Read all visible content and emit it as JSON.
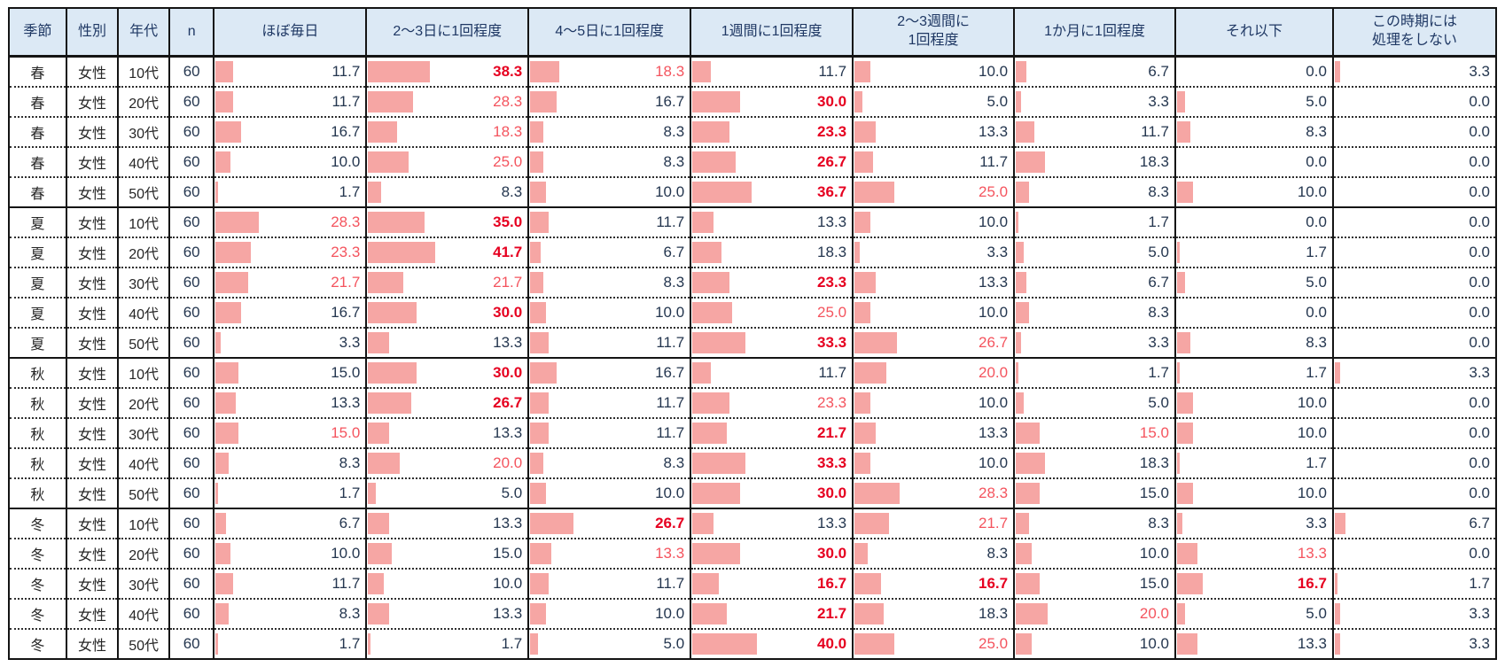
{
  "colors": {
    "header_bg": "#dce9f5",
    "header_text": "#1f3864",
    "normal_value_text": "#24364f",
    "row_max_text": "#e60020",
    "row_second_text": "#f4545e",
    "bar_fill": "#f6a6a4",
    "border": "#141414"
  },
  "table": {
    "columns": [
      {
        "label": "季節"
      },
      {
        "label": "性別"
      },
      {
        "label": "年代"
      },
      {
        "label": "n"
      },
      {
        "label": "ほぼ毎日"
      },
      {
        "label": "2〜3日に1回程度"
      },
      {
        "label": "4〜5日に1回程度"
      },
      {
        "label": "1週間に1回程度"
      },
      {
        "label": "2〜3週間に\n1回程度"
      },
      {
        "label": "1か月に1回程度"
      },
      {
        "label": "それ以下"
      },
      {
        "label": "この時期には\n処理をしない"
      }
    ],
    "rows": [
      {
        "season": "春",
        "gender": "女性",
        "age": "10代",
        "n": "60",
        "cells": [
          {
            "v": 11.7
          },
          {
            "v": 38.3,
            "s": "max"
          },
          {
            "v": 18.3,
            "s": "second"
          },
          {
            "v": 11.7
          },
          {
            "v": 10.0
          },
          {
            "v": 6.7
          },
          {
            "v": 0.0
          },
          {
            "v": 3.3
          }
        ]
      },
      {
        "season": "春",
        "gender": "女性",
        "age": "20代",
        "n": "60",
        "cells": [
          {
            "v": 11.7
          },
          {
            "v": 28.3,
            "s": "second"
          },
          {
            "v": 16.7
          },
          {
            "v": 30.0,
            "s": "max"
          },
          {
            "v": 5.0
          },
          {
            "v": 3.3
          },
          {
            "v": 5.0
          },
          {
            "v": 0.0
          }
        ]
      },
      {
        "season": "春",
        "gender": "女性",
        "age": "30代",
        "n": "60",
        "cells": [
          {
            "v": 16.7
          },
          {
            "v": 18.3,
            "s": "second"
          },
          {
            "v": 8.3
          },
          {
            "v": 23.3,
            "s": "max"
          },
          {
            "v": 13.3
          },
          {
            "v": 11.7
          },
          {
            "v": 8.3
          },
          {
            "v": 0.0
          }
        ]
      },
      {
        "season": "春",
        "gender": "女性",
        "age": "40代",
        "n": "60",
        "cells": [
          {
            "v": 10.0
          },
          {
            "v": 25.0,
            "s": "second"
          },
          {
            "v": 8.3
          },
          {
            "v": 26.7,
            "s": "max"
          },
          {
            "v": 11.7
          },
          {
            "v": 18.3
          },
          {
            "v": 0.0
          },
          {
            "v": 0.0
          }
        ]
      },
      {
        "season": "春",
        "gender": "女性",
        "age": "50代",
        "n": "60",
        "cells": [
          {
            "v": 1.7
          },
          {
            "v": 8.3
          },
          {
            "v": 10.0
          },
          {
            "v": 36.7,
            "s": "max"
          },
          {
            "v": 25.0,
            "s": "second"
          },
          {
            "v": 8.3
          },
          {
            "v": 10.0
          },
          {
            "v": 0.0
          }
        ]
      },
      {
        "season": "夏",
        "gender": "女性",
        "age": "10代",
        "n": "60",
        "cells": [
          {
            "v": 28.3,
            "s": "second"
          },
          {
            "v": 35.0,
            "s": "max"
          },
          {
            "v": 11.7
          },
          {
            "v": 13.3
          },
          {
            "v": 10.0
          },
          {
            "v": 1.7
          },
          {
            "v": 0.0
          },
          {
            "v": 0.0
          }
        ]
      },
      {
        "season": "夏",
        "gender": "女性",
        "age": "20代",
        "n": "60",
        "cells": [
          {
            "v": 23.3,
            "s": "second"
          },
          {
            "v": 41.7,
            "s": "max"
          },
          {
            "v": 6.7
          },
          {
            "v": 18.3
          },
          {
            "v": 3.3
          },
          {
            "v": 5.0
          },
          {
            "v": 1.7
          },
          {
            "v": 0.0
          }
        ]
      },
      {
        "season": "夏",
        "gender": "女性",
        "age": "30代",
        "n": "60",
        "cells": [
          {
            "v": 21.7,
            "s": "second"
          },
          {
            "v": 21.7,
            "s": "second"
          },
          {
            "v": 8.3
          },
          {
            "v": 23.3,
            "s": "max"
          },
          {
            "v": 13.3
          },
          {
            "v": 6.7
          },
          {
            "v": 5.0
          },
          {
            "v": 0.0
          }
        ]
      },
      {
        "season": "夏",
        "gender": "女性",
        "age": "40代",
        "n": "60",
        "cells": [
          {
            "v": 16.7
          },
          {
            "v": 30.0,
            "s": "max"
          },
          {
            "v": 10.0
          },
          {
            "v": 25.0,
            "s": "second"
          },
          {
            "v": 10.0
          },
          {
            "v": 8.3
          },
          {
            "v": 0.0
          },
          {
            "v": 0.0
          }
        ]
      },
      {
        "season": "夏",
        "gender": "女性",
        "age": "50代",
        "n": "60",
        "cells": [
          {
            "v": 3.3
          },
          {
            "v": 13.3
          },
          {
            "v": 11.7
          },
          {
            "v": 33.3,
            "s": "max"
          },
          {
            "v": 26.7,
            "s": "second"
          },
          {
            "v": 3.3
          },
          {
            "v": 8.3
          },
          {
            "v": 0.0
          }
        ]
      },
      {
        "season": "秋",
        "gender": "女性",
        "age": "10代",
        "n": "60",
        "cells": [
          {
            "v": 15.0
          },
          {
            "v": 30.0,
            "s": "max"
          },
          {
            "v": 16.7
          },
          {
            "v": 11.7
          },
          {
            "v": 20.0,
            "s": "second"
          },
          {
            "v": 1.7
          },
          {
            "v": 1.7
          },
          {
            "v": 3.3
          }
        ]
      },
      {
        "season": "秋",
        "gender": "女性",
        "age": "20代",
        "n": "60",
        "cells": [
          {
            "v": 13.3
          },
          {
            "v": 26.7,
            "s": "max"
          },
          {
            "v": 11.7
          },
          {
            "v": 23.3,
            "s": "second"
          },
          {
            "v": 10.0
          },
          {
            "v": 5.0
          },
          {
            "v": 10.0
          },
          {
            "v": 0.0
          }
        ]
      },
      {
        "season": "秋",
        "gender": "女性",
        "age": "30代",
        "n": "60",
        "cells": [
          {
            "v": 15.0,
            "s": "second"
          },
          {
            "v": 13.3
          },
          {
            "v": 11.7
          },
          {
            "v": 21.7,
            "s": "max"
          },
          {
            "v": 13.3
          },
          {
            "v": 15.0,
            "s": "second"
          },
          {
            "v": 10.0
          },
          {
            "v": 0.0
          }
        ]
      },
      {
        "season": "秋",
        "gender": "女性",
        "age": "40代",
        "n": "60",
        "cells": [
          {
            "v": 8.3
          },
          {
            "v": 20.0,
            "s": "second"
          },
          {
            "v": 8.3
          },
          {
            "v": 33.3,
            "s": "max"
          },
          {
            "v": 10.0
          },
          {
            "v": 18.3
          },
          {
            "v": 1.7
          },
          {
            "v": 0.0
          }
        ]
      },
      {
        "season": "秋",
        "gender": "女性",
        "age": "50代",
        "n": "60",
        "cells": [
          {
            "v": 1.7
          },
          {
            "v": 5.0
          },
          {
            "v": 10.0
          },
          {
            "v": 30.0,
            "s": "max"
          },
          {
            "v": 28.3,
            "s": "second"
          },
          {
            "v": 15.0
          },
          {
            "v": 10.0
          },
          {
            "v": 0.0
          }
        ]
      },
      {
        "season": "冬",
        "gender": "女性",
        "age": "10代",
        "n": "60",
        "cells": [
          {
            "v": 6.7
          },
          {
            "v": 13.3
          },
          {
            "v": 26.7,
            "s": "max"
          },
          {
            "v": 13.3
          },
          {
            "v": 21.7,
            "s": "second"
          },
          {
            "v": 8.3
          },
          {
            "v": 3.3
          },
          {
            "v": 6.7
          }
        ]
      },
      {
        "season": "冬",
        "gender": "女性",
        "age": "20代",
        "n": "60",
        "cells": [
          {
            "v": 10.0
          },
          {
            "v": 15.0
          },
          {
            "v": 13.3,
            "s": "second"
          },
          {
            "v": 30.0,
            "s": "max"
          },
          {
            "v": 8.3
          },
          {
            "v": 10.0
          },
          {
            "v": 13.3,
            "s": "second"
          },
          {
            "v": 0.0
          }
        ]
      },
      {
        "season": "冬",
        "gender": "女性",
        "age": "30代",
        "n": "60",
        "cells": [
          {
            "v": 11.7
          },
          {
            "v": 10.0
          },
          {
            "v": 11.7
          },
          {
            "v": 16.7,
            "s": "max"
          },
          {
            "v": 16.7,
            "s": "max"
          },
          {
            "v": 15.0
          },
          {
            "v": 16.7,
            "s": "max"
          },
          {
            "v": 1.7
          }
        ]
      },
      {
        "season": "冬",
        "gender": "女性",
        "age": "40代",
        "n": "60",
        "cells": [
          {
            "v": 8.3
          },
          {
            "v": 13.3
          },
          {
            "v": 10.0
          },
          {
            "v": 21.7,
            "s": "max"
          },
          {
            "v": 18.3
          },
          {
            "v": 20.0,
            "s": "second"
          },
          {
            "v": 5.0
          },
          {
            "v": 3.3
          }
        ]
      },
      {
        "season": "冬",
        "gender": "女性",
        "age": "50代",
        "n": "60",
        "cells": [
          {
            "v": 1.7
          },
          {
            "v": 1.7
          },
          {
            "v": 5.0
          },
          {
            "v": 40.0,
            "s": "max"
          },
          {
            "v": 25.0,
            "s": "second"
          },
          {
            "v": 10.0
          },
          {
            "v": 13.3
          },
          {
            "v": 3.3
          }
        ]
      }
    ]
  },
  "chart_data": {
    "type": "table",
    "title": "",
    "columns": [
      "季節",
      "性別",
      "年代",
      "n",
      "ほぼ毎日",
      "2〜3日に1回程度",
      "4〜5日に1回程度",
      "1週間に1回程度",
      "2〜3週間に1回程度",
      "1か月に1回程度",
      "それ以下",
      "この時期には処理をしない"
    ],
    "rows": [
      [
        "春",
        "女性",
        "10代",
        60,
        11.7,
        38.3,
        18.3,
        11.7,
        10.0,
        6.7,
        0.0,
        3.3
      ],
      [
        "春",
        "女性",
        "20代",
        60,
        11.7,
        28.3,
        16.7,
        30.0,
        5.0,
        3.3,
        5.0,
        0.0
      ],
      [
        "春",
        "女性",
        "30代",
        60,
        16.7,
        18.3,
        8.3,
        23.3,
        13.3,
        11.7,
        8.3,
        0.0
      ],
      [
        "春",
        "女性",
        "40代",
        60,
        10.0,
        25.0,
        8.3,
        26.7,
        11.7,
        18.3,
        0.0,
        0.0
      ],
      [
        "春",
        "女性",
        "50代",
        60,
        1.7,
        8.3,
        10.0,
        36.7,
        25.0,
        8.3,
        10.0,
        0.0
      ],
      [
        "夏",
        "女性",
        "10代",
        60,
        28.3,
        35.0,
        11.7,
        13.3,
        10.0,
        1.7,
        0.0,
        0.0
      ],
      [
        "夏",
        "女性",
        "20代",
        60,
        23.3,
        41.7,
        6.7,
        18.3,
        3.3,
        5.0,
        1.7,
        0.0
      ],
      [
        "夏",
        "女性",
        "30代",
        60,
        21.7,
        21.7,
        8.3,
        23.3,
        13.3,
        6.7,
        5.0,
        0.0
      ],
      [
        "夏",
        "女性",
        "40代",
        60,
        16.7,
        30.0,
        10.0,
        25.0,
        10.0,
        8.3,
        0.0,
        0.0
      ],
      [
        "夏",
        "女性",
        "50代",
        60,
        3.3,
        13.3,
        11.7,
        33.3,
        26.7,
        3.3,
        8.3,
        0.0
      ],
      [
        "秋",
        "女性",
        "10代",
        60,
        15.0,
        30.0,
        16.7,
        11.7,
        20.0,
        1.7,
        1.7,
        3.3
      ],
      [
        "秋",
        "女性",
        "20代",
        60,
        13.3,
        26.7,
        11.7,
        23.3,
        10.0,
        5.0,
        10.0,
        0.0
      ],
      [
        "秋",
        "女性",
        "30代",
        60,
        15.0,
        13.3,
        11.7,
        21.7,
        13.3,
        15.0,
        10.0,
        0.0
      ],
      [
        "秋",
        "女性",
        "40代",
        60,
        8.3,
        20.0,
        8.3,
        33.3,
        10.0,
        18.3,
        1.7,
        0.0
      ],
      [
        "秋",
        "女性",
        "50代",
        60,
        1.7,
        5.0,
        10.0,
        30.0,
        28.3,
        15.0,
        10.0,
        0.0
      ],
      [
        "冬",
        "女性",
        "10代",
        60,
        6.7,
        13.3,
        26.7,
        13.3,
        21.7,
        8.3,
        3.3,
        6.7
      ],
      [
        "冬",
        "女性",
        "20代",
        60,
        10.0,
        15.0,
        13.3,
        30.0,
        8.3,
        10.0,
        13.3,
        0.0
      ],
      [
        "冬",
        "女性",
        "30代",
        60,
        11.7,
        10.0,
        11.7,
        16.7,
        16.7,
        15.0,
        16.7,
        1.7
      ],
      [
        "冬",
        "女性",
        "40代",
        60,
        8.3,
        13.3,
        10.0,
        21.7,
        18.3,
        20.0,
        5.0,
        3.3
      ],
      [
        "冬",
        "女性",
        "50代",
        60,
        1.7,
        1.7,
        5.0,
        40.0,
        25.0,
        10.0,
        13.3,
        3.3
      ]
    ],
    "bar_scale": "in-cell bars, width = percent value of cell width",
    "value_range": [
      0,
      41.7
    ]
  }
}
